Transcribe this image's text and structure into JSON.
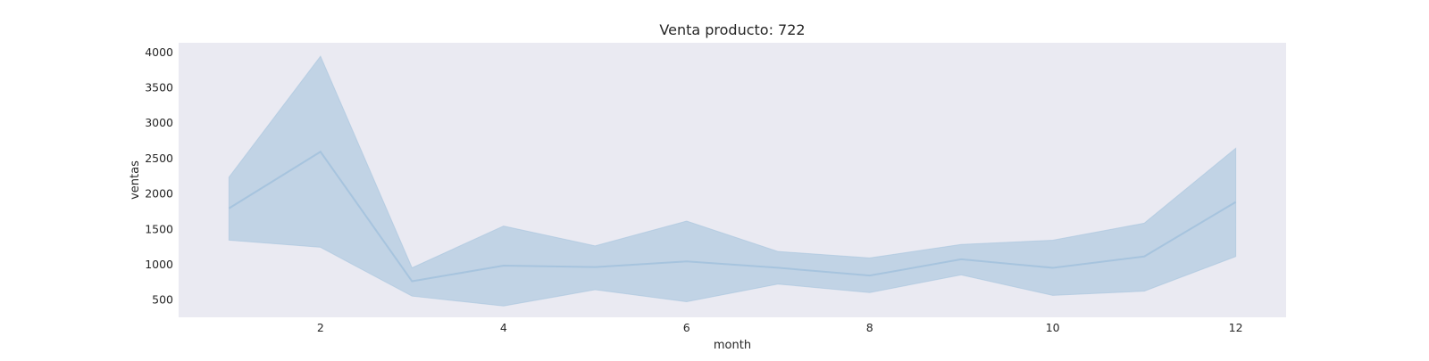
{
  "chart_data": {
    "type": "area",
    "title": "Venta producto: 722",
    "xlabel": "month",
    "ylabel": "ventas",
    "xlim": [
      0.45,
      12.55
    ],
    "ylim": [
      250,
      4130
    ],
    "xticks": [
      2,
      4,
      6,
      8,
      10,
      12
    ],
    "yticks": [
      500,
      1000,
      1500,
      2000,
      2500,
      3000,
      3500,
      4000
    ],
    "grid": false,
    "legend": "none",
    "x": [
      1,
      2,
      3,
      4,
      5,
      6,
      7,
      8,
      9,
      10,
      11,
      12
    ],
    "series": [
      {
        "mean": [
          1790,
          2590,
          760,
          980,
          960,
          1040,
          950,
          840,
          1070,
          950,
          1110,
          1880
        ],
        "lower": [
          1340,
          1240,
          550,
          410,
          640,
          470,
          720,
          600,
          850,
          560,
          620,
          1110
        ],
        "upper": [
          2230,
          3940,
          950,
          1540,
          1260,
          1610,
          1180,
          1090,
          1280,
          1340,
          1580,
          2640
        ]
      }
    ]
  },
  "colors": {
    "plot_background": "#eaeaf2",
    "band_fill": "#1f77b4",
    "line": "#a7c4de",
    "band_edge": "#a7c4de"
  }
}
